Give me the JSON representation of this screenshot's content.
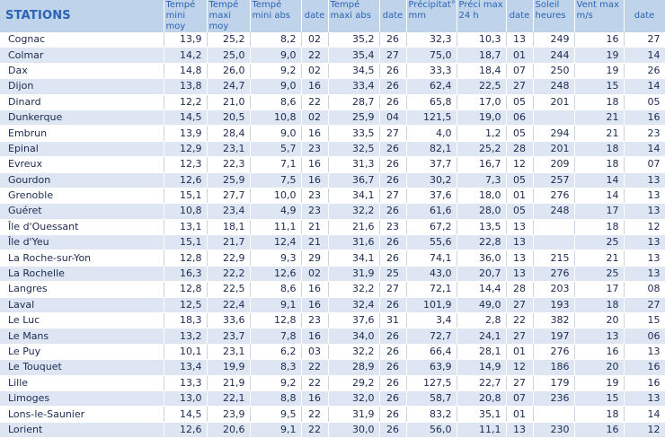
{
  "headers": {
    "stations": "STATIONS",
    "tmin_moy": "Tempé mini moy",
    "tmax_moy": "Tempé maxi moy",
    "tmin_abs": "Tempé mini abs",
    "date1": "date",
    "tmax_abs": "Tempé maxi abs",
    "date2": "date",
    "precip": "Précipitat° mm",
    "preci_max": "Préci max 24 h",
    "date3": "date",
    "soleil": "Soleil heures",
    "vent_max": "Vent max m/s",
    "date4": "date"
  },
  "rows": [
    [
      "Cognac",
      "13,9",
      "25,2",
      "8,2",
      "02",
      "35,2",
      "26",
      "32,3",
      "10,3",
      "13",
      "249",
      "16",
      "27"
    ],
    [
      "Colmar",
      "14,2",
      "25,0",
      "9,0",
      "22",
      "35,4",
      "27",
      "75,0",
      "18,7",
      "01",
      "244",
      "19",
      "14"
    ],
    [
      "Dax",
      "14,8",
      "26,0",
      "9,2",
      "02",
      "34,5",
      "26",
      "33,3",
      "18,4",
      "07",
      "250",
      "19",
      "26"
    ],
    [
      "Dijon",
      "13,8",
      "24,7",
      "9,0",
      "16",
      "33,4",
      "26",
      "62,4",
      "22,5",
      "27",
      "248",
      "15",
      "14"
    ],
    [
      "Dinard",
      "12,2",
      "21,0",
      "8,6",
      "22",
      "28,7",
      "26",
      "65,8",
      "17,0",
      "05",
      "201",
      "18",
      "05"
    ],
    [
      "Dunkerque",
      "14,5",
      "20,5",
      "10,8",
      "02",
      "25,9",
      "04",
      "121,5",
      "19,0",
      "06",
      "",
      "21",
      "16"
    ],
    [
      "Embrun",
      "13,9",
      "28,4",
      "9,0",
      "16",
      "33,5",
      "27",
      "4,0",
      "1,2",
      "05",
      "294",
      "21",
      "23"
    ],
    [
      "Epinal",
      "12,9",
      "23,1",
      "5,7",
      "23",
      "32,5",
      "26",
      "82,1",
      "25,2",
      "28",
      "201",
      "18",
      "14"
    ],
    [
      "Evreux",
      "12,3",
      "22,3",
      "7,1",
      "16",
      "31,3",
      "26",
      "37,7",
      "16,7",
      "12",
      "209",
      "18",
      "07"
    ],
    [
      "Gourdon",
      "12,6",
      "25,9",
      "7,5",
      "16",
      "36,7",
      "26",
      "30,2",
      "7,3",
      "05",
      "257",
      "14",
      "13"
    ],
    [
      "Grenoble",
      "15,1",
      "27,7",
      "10,0",
      "23",
      "34,1",
      "27",
      "37,6",
      "18,0",
      "01",
      "276",
      "14",
      "13"
    ],
    [
      "Guéret",
      "10,8",
      "23,4",
      "4,9",
      "23",
      "32,2",
      "26",
      "61,6",
      "28,0",
      "05",
      "248",
      "17",
      "13"
    ],
    [
      "Île d'Ouessant",
      "13,1",
      "18,1",
      "11,1",
      "21",
      "21,6",
      "23",
      "67,2",
      "13,5",
      "13",
      "",
      "18",
      "12"
    ],
    [
      "Île d'Yeu",
      "15,1",
      "21,7",
      "12,4",
      "21",
      "31,6",
      "26",
      "55,6",
      "22,8",
      "13",
      "",
      "25",
      "13"
    ],
    [
      "La Roche-sur-Yon",
      "12,8",
      "22,9",
      "9,3",
      "29",
      "34,1",
      "26",
      "74,1",
      "36,0",
      "13",
      "215",
      "21",
      "13"
    ],
    [
      "La Rochelle",
      "16,3",
      "22,2",
      "12,6",
      "02",
      "31,9",
      "25",
      "43,0",
      "20,7",
      "13",
      "276",
      "25",
      "13"
    ],
    [
      "Langres",
      "12,8",
      "22,5",
      "8,6",
      "16",
      "32,2",
      "27",
      "72,1",
      "14,4",
      "28",
      "203",
      "17",
      "08"
    ],
    [
      "Laval",
      "12,5",
      "22,4",
      "9,1",
      "16",
      "32,4",
      "26",
      "101,9",
      "49,0",
      "27",
      "193",
      "18",
      "27"
    ],
    [
      "Le Luc",
      "18,3",
      "33,6",
      "12,8",
      "23",
      "37,6",
      "31",
      "3,4",
      "2,8",
      "22",
      "382",
      "20",
      "15"
    ],
    [
      "Le Mans",
      "13,2",
      "23,7",
      "7,8",
      "16",
      "34,0",
      "26",
      "72,7",
      "24,1",
      "27",
      "197",
      "13",
      "06"
    ],
    [
      "Le Puy",
      "10,1",
      "23,1",
      "6,2",
      "03",
      "32,2",
      "26",
      "66,4",
      "28,1",
      "01",
      "276",
      "16",
      "13"
    ],
    [
      "Le Touquet",
      "13,4",
      "19,9",
      "8,3",
      "22",
      "28,9",
      "26",
      "63,9",
      "14,9",
      "12",
      "186",
      "20",
      "16"
    ],
    [
      "Lille",
      "13,3",
      "21,9",
      "9,2",
      "22",
      "29,2",
      "26",
      "127,5",
      "22,7",
      "27",
      "179",
      "19",
      "16"
    ],
    [
      "Limoges",
      "13,0",
      "22,1",
      "8,8",
      "16",
      "32,0",
      "26",
      "58,7",
      "20,8",
      "07",
      "236",
      "15",
      "13"
    ],
    [
      "Lons-le-Saunier",
      "14,5",
      "23,9",
      "9,5",
      "22",
      "31,9",
      "26",
      "83,2",
      "35,1",
      "01",
      "",
      "18",
      "14"
    ],
    [
      "Lorient",
      "12,6",
      "20,6",
      "9,1",
      "22",
      "30,0",
      "26",
      "56,0",
      "11,1",
      "13",
      "230",
      "16",
      "12"
    ]
  ]
}
